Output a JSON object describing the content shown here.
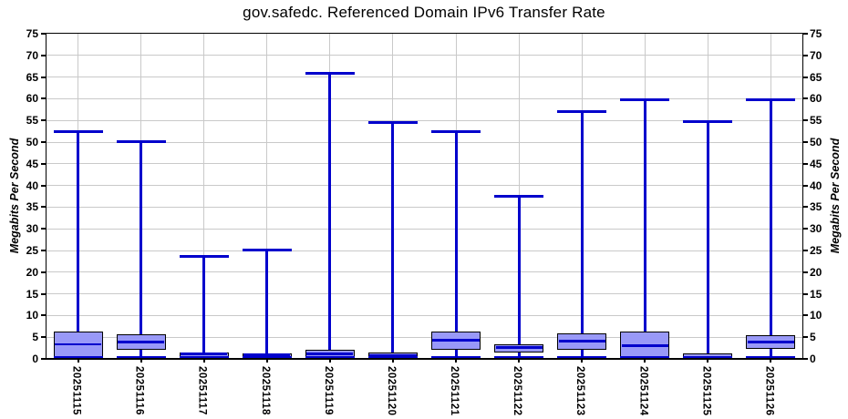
{
  "chart_data": {
    "type": "boxplot",
    "title": "gov.safedc. Referenced Domain IPv6 Transfer Rate",
    "ylabel_left": "Megabits Per Second",
    "ylabel_right": "Megabits Per Second",
    "ylim": [
      0,
      75
    ],
    "ytick_step": 5,
    "grid": true,
    "legend": "none",
    "categories": [
      "20251115",
      "20251116",
      "20251117",
      "20251118",
      "20251119",
      "20251120",
      "20251121",
      "20251122",
      "20251123",
      "20251124",
      "20251125",
      "20251126"
    ],
    "boxes": [
      {
        "category": "20251115",
        "min": 0,
        "q1": 0,
        "median": 3.4,
        "q3": 6.3,
        "max": 52.4
      },
      {
        "category": "20251116",
        "min": 0,
        "q1": 2.1,
        "median": 3.9,
        "q3": 5.6,
        "max": 50.2
      },
      {
        "category": "20251117",
        "min": 0,
        "q1": 0,
        "median": 1.1,
        "q3": 1.5,
        "max": 23.7
      },
      {
        "category": "20251118",
        "min": 0,
        "q1": 0,
        "median": 1.0,
        "q3": 1.3,
        "max": 25.2
      },
      {
        "category": "20251119",
        "min": 0,
        "q1": 0.4,
        "median": 1.2,
        "q3": 2.1,
        "max": 65.8
      },
      {
        "category": "20251120",
        "min": 0,
        "q1": 0,
        "median": 0.7,
        "q3": 1.5,
        "max": 54.5
      },
      {
        "category": "20251121",
        "min": 0,
        "q1": 2.1,
        "median": 4.3,
        "q3": 6.4,
        "max": 52.5
      },
      {
        "category": "20251122",
        "min": 0,
        "q1": 1.5,
        "median": 2.6,
        "q3": 3.3,
        "max": 37.6
      },
      {
        "category": "20251123",
        "min": 0,
        "q1": 2.0,
        "median": 4.1,
        "q3": 5.8,
        "max": 57.0
      },
      {
        "category": "20251124",
        "min": 0,
        "q1": 0.4,
        "median": 3.1,
        "q3": 6.2,
        "max": 59.8
      },
      {
        "category": "20251125",
        "min": 0,
        "q1": 0,
        "median": 0.4,
        "q3": 1.3,
        "max": 54.7
      },
      {
        "category": "20251126",
        "min": 0,
        "q1": 2.3,
        "median": 3.9,
        "q3": 5.4,
        "max": 59.8
      }
    ],
    "colors": {
      "whisker": "#0000cc",
      "median": "#0000cc",
      "box_fill": "#9999f8",
      "box_border": "#000000",
      "grid": "#c9c9c9",
      "frame": "#000000",
      "text": "#000000",
      "background": "#ffffff"
    }
  }
}
